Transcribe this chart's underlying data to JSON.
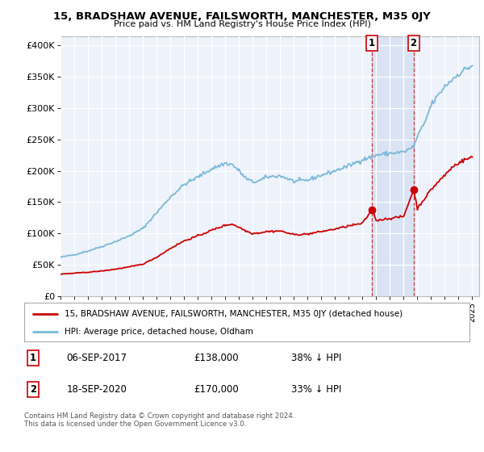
{
  "title": "15, BRADSHAW AVENUE, FAILSWORTH, MANCHESTER, M35 0JY",
  "subtitle": "Price paid vs. HM Land Registry's House Price Index (HPI)",
  "ylabel_ticks": [
    "£0",
    "£50K",
    "£100K",
    "£150K",
    "£200K",
    "£250K",
    "£300K",
    "£350K",
    "£400K"
  ],
  "ytick_values": [
    0,
    50000,
    100000,
    150000,
    200000,
    250000,
    300000,
    350000,
    400000
  ],
  "ylim": [
    0,
    415000
  ],
  "xlim_start": 1995.0,
  "xlim_end": 2025.5,
  "hpi_color": "#7ab8d9",
  "price_color": "#cc0000",
  "sale1_x": 2017.69,
  "sale1_y": 138000,
  "sale2_x": 2020.72,
  "sale2_y": 170000,
  "legend_house": "15, BRADSHAW AVENUE, FAILSWORTH, MANCHESTER, M35 0JY (detached house)",
  "legend_hpi": "HPI: Average price, detached house, Oldham",
  "annot1_date": "06-SEP-2017",
  "annot1_price": "£138,000",
  "annot1_pct": "38% ↓ HPI",
  "annot2_date": "18-SEP-2020",
  "annot2_price": "£170,000",
  "annot2_pct": "33% ↓ HPI",
  "footer": "Contains HM Land Registry data © Crown copyright and database right 2024.\nThis data is licensed under the Open Government Licence v3.0.",
  "background_color": "#ffffff",
  "plot_bg_color": "#eef2fb",
  "grid_color": "#d8dce8",
  "highlight_color": "#c8d8ee"
}
